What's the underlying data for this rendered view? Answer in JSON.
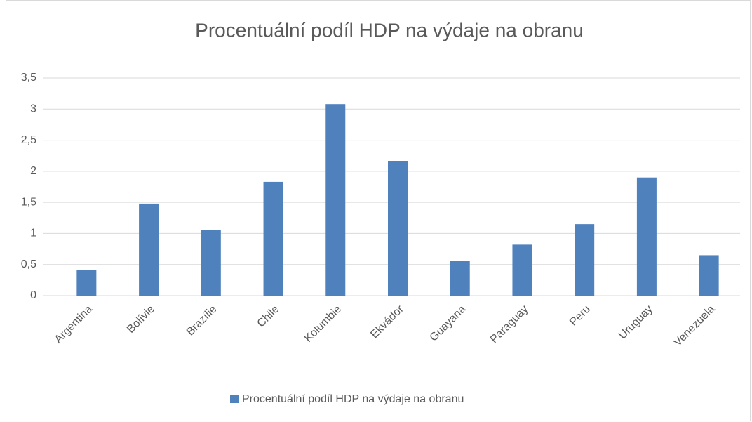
{
  "chart_data": {
    "type": "bar",
    "title": "Procentuální podíl HDP na výdaje na obranu",
    "categories": [
      "Argentina",
      "Bolívie",
      "Brazílie",
      "Chile",
      "Kolumbie",
      "Ekvádor",
      "Guayana",
      "Paraguay",
      "Peru",
      "Uruguay",
      "Venezuela"
    ],
    "series": [
      {
        "name": "Procentuální podíl HDP na výdaje na obranu",
        "color": "#4f81bd",
        "values": [
          0.41,
          1.48,
          1.05,
          1.83,
          3.08,
          2.16,
          0.56,
          0.82,
          1.15,
          1.9,
          0.65
        ]
      }
    ],
    "ylim": [
      0,
      3.5
    ],
    "yticks": [
      0,
      {
        "value": 0.5,
        "label": "0,5"
      },
      1,
      {
        "value": 1.5,
        "label": "1,5"
      },
      2,
      {
        "value": 2.5,
        "label": "2,5"
      },
      3,
      {
        "value": 3.5,
        "label": "3,5"
      }
    ],
    "grid": true,
    "legend": "bottom"
  }
}
